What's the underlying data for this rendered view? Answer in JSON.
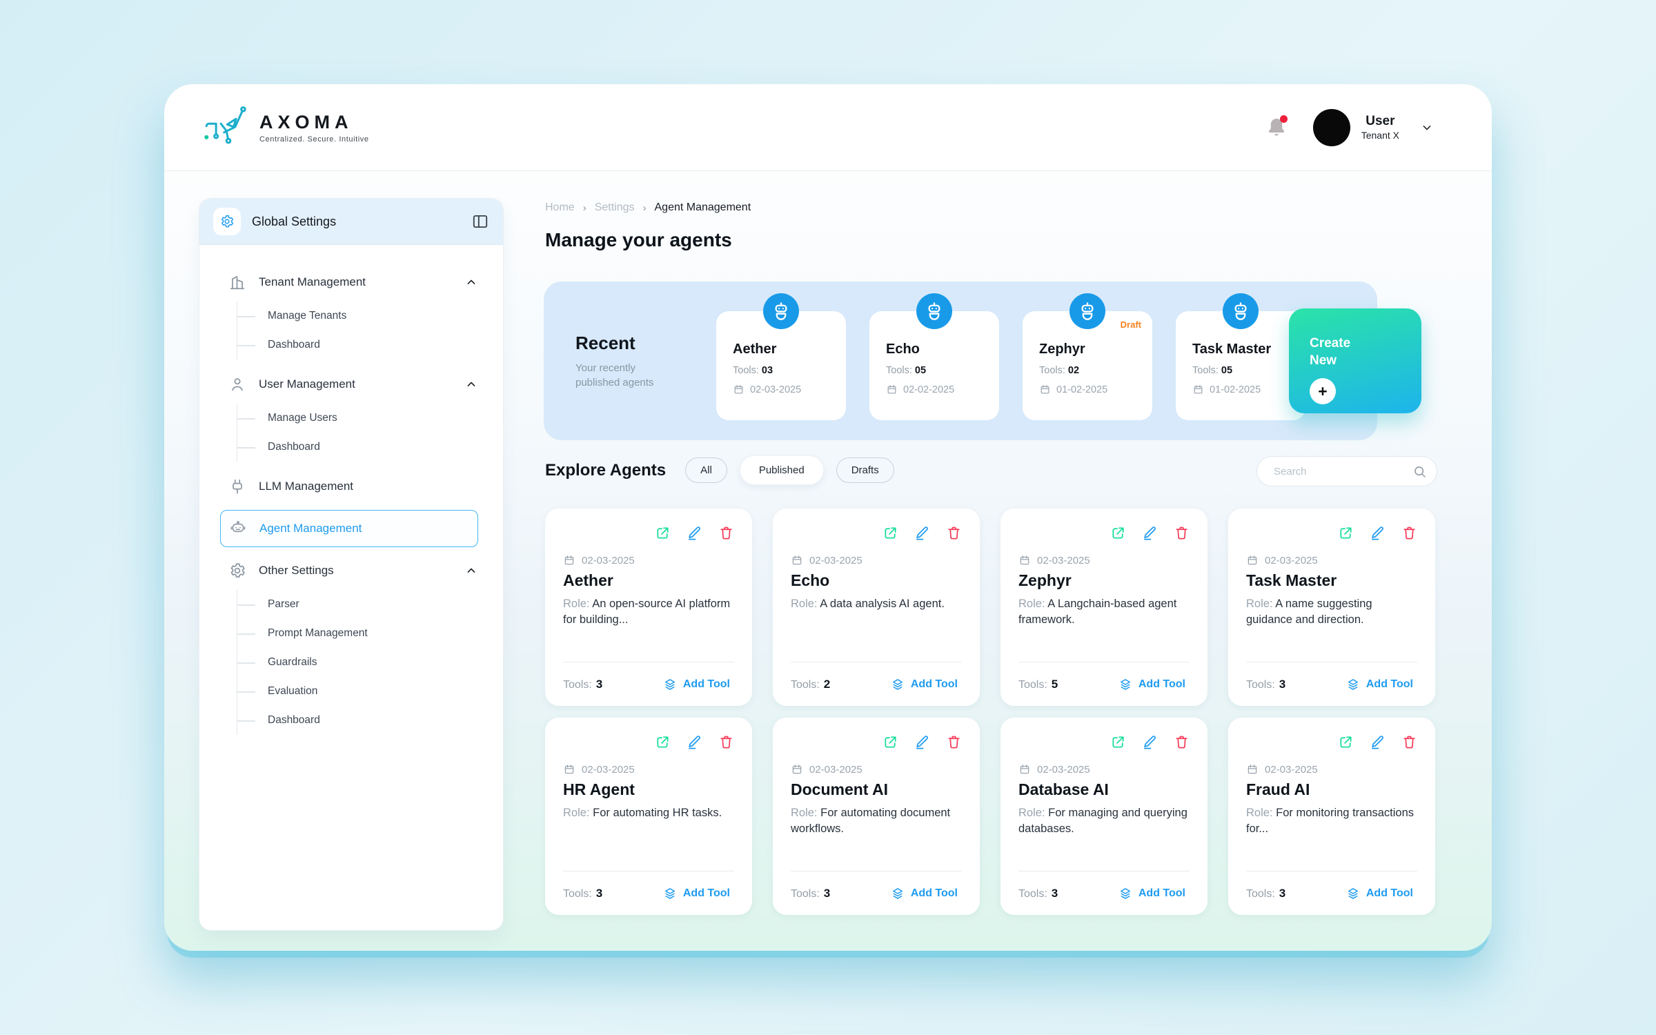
{
  "brand": {
    "name": "AXOMA",
    "tagline": "Centralized. Secure. Intuitive"
  },
  "topbar": {
    "user_name": "User",
    "tenant": "Tenant X",
    "unread_notifications": true
  },
  "sidebar": {
    "header": {
      "title": "Global Settings"
    },
    "items": [
      {
        "label": "Tenant Management",
        "icon": "building",
        "expanded": true,
        "children": [
          "Manage Tenants",
          "Dashboard"
        ]
      },
      {
        "label": "User Management",
        "icon": "user",
        "expanded": true,
        "children": [
          "Manage Users",
          "Dashboard"
        ]
      },
      {
        "label": "LLM Management",
        "icon": "plug",
        "children": []
      },
      {
        "label": "Agent Management",
        "icon": "robot",
        "selected": true,
        "children": []
      },
      {
        "label": "Other Settings",
        "icon": "gear",
        "expanded": true,
        "children": [
          "Parser",
          "Prompt Management",
          "Guardrails",
          "Evaluation",
          "Dashboard"
        ]
      }
    ]
  },
  "breadcrumb": [
    "Home",
    "Settings",
    "Agent Management"
  ],
  "page_title": "Manage your agents",
  "recent": {
    "title": "Recent",
    "subtitle": "Your recently published agents",
    "tools_label": "Tools:",
    "cards": [
      {
        "name": "Aether",
        "tools": "03",
        "date": "02-03-2025"
      },
      {
        "name": "Echo",
        "tools": "05",
        "date": "02-02-2025"
      },
      {
        "name": "Zephyr",
        "tools": "02",
        "date": "01-02-2025",
        "badge": "Draft"
      },
      {
        "name": "Task Master",
        "tools": "05",
        "date": "01-02-2025"
      }
    ],
    "create_label": "Create New"
  },
  "explore": {
    "title": "Explore Agents",
    "filters": [
      {
        "label": "All",
        "active": false
      },
      {
        "label": "Published",
        "active": true
      },
      {
        "label": "Drafts",
        "active": false
      }
    ],
    "search_placeholder": "Search",
    "labels": {
      "role": "Role:",
      "tools": "Tools:",
      "add_tool": "Add Tool"
    },
    "cards": [
      {
        "date": "02-03-2025",
        "name": "Aether",
        "role": "An open-source AI platform for building...",
        "tools": "3"
      },
      {
        "date": "02-03-2025",
        "name": "Echo",
        "role": "A data analysis AI agent.",
        "tools": "2"
      },
      {
        "date": "02-03-2025",
        "name": "Zephyr",
        "role": "A Langchain-based agent framework.",
        "tools": "5"
      },
      {
        "date": "02-03-2025",
        "name": "Task Master",
        "role": "A name suggesting guidance and direction.",
        "tools": "3"
      },
      {
        "date": "02-03-2025",
        "name": "HR Agent",
        "role": "For automating HR tasks.",
        "tools": "3"
      },
      {
        "date": "02-03-2025",
        "name": "Document AI",
        "role": "For automating document workflows.",
        "tools": "3"
      },
      {
        "date": "02-03-2025",
        "name": "Database AI",
        "role": "For managing and querying databases.",
        "tools": "3"
      },
      {
        "date": "02-03-2025",
        "name": "Fraud AI",
        "role": "For monitoring transactions for...",
        "tools": "3"
      }
    ]
  },
  "colors": {
    "accent_blue": "#1e9bf0",
    "avatar_circle_blue": "#189ae8",
    "share_green": "#12dd96",
    "delete_red": "#f53b57",
    "draft_orange": "#f5821f",
    "create_gradient_start": "#2be3a7",
    "create_gradient_end": "#1db4ec",
    "recent_panel_blue": "#d7e9fa",
    "notification_red": "#ee1f3b"
  }
}
